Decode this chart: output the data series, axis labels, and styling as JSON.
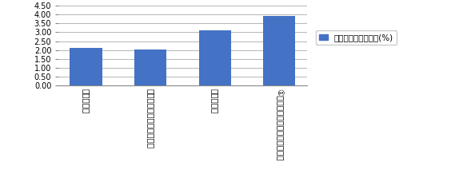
{
  "categories": [
    "独立系企業",
    "子会社（外資系企業含む）",
    "外資系企業",
    "①以外の国に属する外資系企業"
  ],
  "values": [
    2.1,
    2.05,
    3.1,
    3.9
  ],
  "bar_color": "#4472C4",
  "legend_label": "平均研究開発集約度(%)",
  "ylim": [
    0,
    4.5
  ],
  "yticks": [
    0.0,
    0.5,
    1.0,
    1.5,
    2.0,
    2.5,
    3.0,
    3.5,
    4.0,
    4.5
  ],
  "background_color": "#ffffff",
  "plot_bg_color": "#ffffff",
  "grid_color": "#aaaaaa"
}
